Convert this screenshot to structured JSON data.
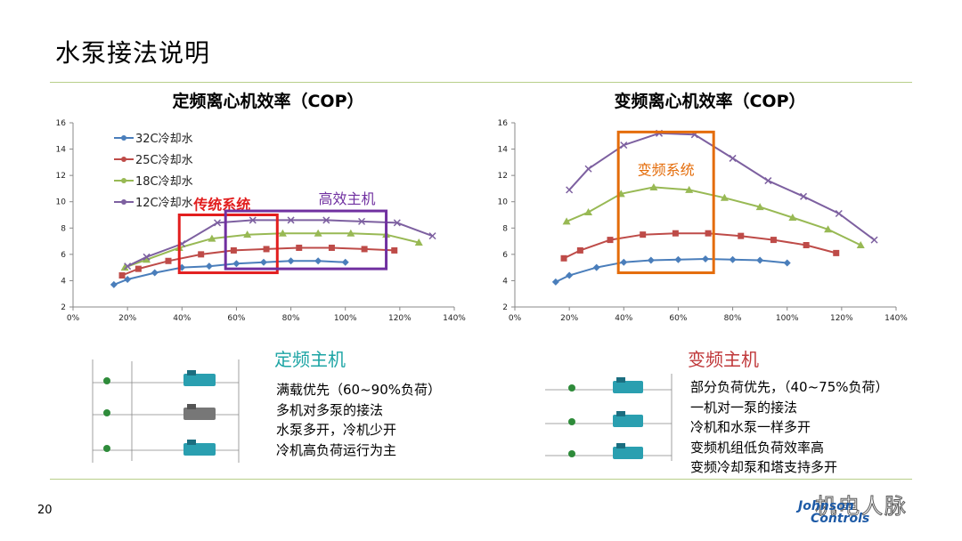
{
  "page": {
    "title": "水泵接法说明",
    "page_number": "20"
  },
  "chart_data": [
    {
      "type": "line",
      "title": "定频离心机效率（COP）",
      "x_ticks": [
        "0%",
        "20%",
        "40%",
        "60%",
        "80%",
        "100%",
        "120%",
        "140%"
      ],
      "y_ticks": [
        "2",
        "4",
        "6",
        "8",
        "10",
        "12",
        "14",
        "16"
      ],
      "xlim": [
        0,
        140
      ],
      "ylim": [
        2,
        16
      ],
      "series": [
        {
          "name": "32C冷却水",
          "color": "#4a7ebb",
          "marker": "diamond",
          "x": [
            15,
            20,
            30,
            40,
            50,
            60,
            70,
            80,
            90,
            100
          ],
          "y": [
            3.7,
            4.1,
            4.6,
            5.0,
            5.1,
            5.3,
            5.4,
            5.5,
            5.5,
            5.4
          ]
        },
        {
          "name": "25C冷却水",
          "color": "#be4b48",
          "marker": "square",
          "x": [
            18,
            24,
            35,
            47,
            59,
            71,
            83,
            95,
            107,
            118
          ],
          "y": [
            4.4,
            4.9,
            5.5,
            6.0,
            6.3,
            6.4,
            6.5,
            6.5,
            6.4,
            6.3
          ]
        },
        {
          "name": "18C冷却水",
          "color": "#98b954",
          "marker": "triangle",
          "x": [
            19,
            27,
            39,
            51,
            64,
            77,
            90,
            102,
            115,
            127
          ],
          "y": [
            5.0,
            5.6,
            6.5,
            7.2,
            7.5,
            7.6,
            7.6,
            7.6,
            7.5,
            6.9
          ]
        },
        {
          "name": "12C冷却水",
          "color": "#7d60a0",
          "marker": "x",
          "x": [
            20,
            27,
            40,
            53,
            66,
            80,
            93,
            106,
            119,
            132
          ],
          "y": [
            5.1,
            5.8,
            6.8,
            8.4,
            8.6,
            8.6,
            8.6,
            8.5,
            8.4,
            7.4
          ]
        }
      ],
      "annotations": [
        {
          "text": "传统系统",
          "color": "#e21e1e",
          "x0": 39,
          "x1": 75,
          "y0": 4.6,
          "y1": 9.0
        },
        {
          "text": "高效主机",
          "color": "#7030a0",
          "x0": 56,
          "x1": 115,
          "y0": 4.9,
          "y1": 9.3
        }
      ]
    },
    {
      "type": "line",
      "title": "变频离心机效率（COP）",
      "x_ticks": [
        "0%",
        "20%",
        "40%",
        "60%",
        "80%",
        "100%",
        "120%",
        "140%"
      ],
      "y_ticks": [
        "2",
        "4",
        "6",
        "8",
        "10",
        "12",
        "14",
        "16"
      ],
      "xlim": [
        0,
        140
      ],
      "ylim": [
        2,
        16
      ],
      "series": [
        {
          "name": "32C冷却水",
          "color": "#4a7ebb",
          "marker": "diamond",
          "x": [
            15,
            20,
            30,
            40,
            50,
            60,
            70,
            80,
            90,
            100
          ],
          "y": [
            3.9,
            4.4,
            5.0,
            5.4,
            5.55,
            5.6,
            5.65,
            5.6,
            5.55,
            5.35
          ]
        },
        {
          "name": "25C冷却水",
          "color": "#be4b48",
          "marker": "square",
          "x": [
            18,
            24,
            35,
            47,
            59,
            71,
            83,
            95,
            107,
            118
          ],
          "y": [
            5.7,
            6.3,
            7.1,
            7.5,
            7.6,
            7.6,
            7.4,
            7.1,
            6.7,
            6.1
          ]
        },
        {
          "name": "18C冷却水",
          "color": "#98b954",
          "marker": "triangle",
          "x": [
            19,
            27,
            39,
            51,
            64,
            77,
            90,
            102,
            115,
            127
          ],
          "y": [
            8.5,
            9.2,
            10.6,
            11.1,
            10.9,
            10.3,
            9.6,
            8.8,
            7.9,
            6.7
          ]
        },
        {
          "name": "12C冷却水",
          "color": "#7d60a0",
          "marker": "x",
          "x": [
            20,
            27,
            40,
            53,
            66,
            80,
            93,
            106,
            119,
            132
          ],
          "y": [
            10.9,
            12.5,
            14.3,
            15.2,
            15.1,
            13.3,
            11.6,
            10.4,
            9.1,
            7.1
          ]
        }
      ],
      "annotations": [
        {
          "text": "变频系统",
          "color": "#e46c0a",
          "x0": 38,
          "x1": 73,
          "y0": 4.6,
          "y1": 15.3
        }
      ]
    }
  ],
  "left_panel": {
    "subtitle": "定频主机",
    "color": "#1ea5a5",
    "bullets": [
      "满载优先（60~90%负荷）",
      "多机对多泵的接法",
      "水泵多开，冷机少开",
      "冷机高负荷运行为主"
    ]
  },
  "right_panel": {
    "subtitle": "变频主机",
    "color": "#c0393b",
    "bullets": [
      "部分负荷优先，（40~75%负荷）",
      "一机对一泵的接法",
      "冷机和水泵一样多开",
      "变频机组低负荷效率高",
      "变频冷却泵和塔支持多开"
    ]
  },
  "branding": {
    "watermark": "机电人脉",
    "logo_line1": "Johnson",
    "logo_line2": "Controls"
  }
}
